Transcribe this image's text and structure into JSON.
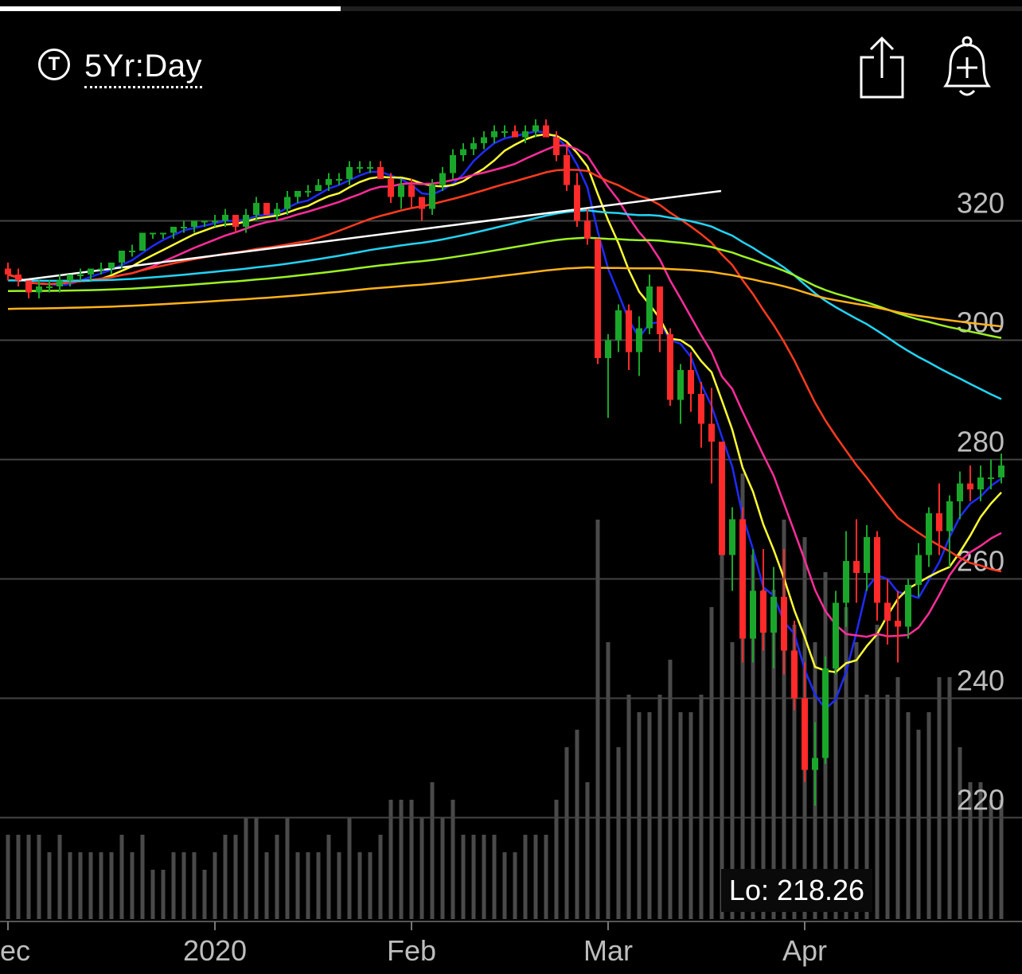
{
  "header": {
    "timeframe_icon_label": "T",
    "timeframe_label": "5Yr:Day",
    "share_icon": "share-icon",
    "alert_icon": "bell-plus-icon"
  },
  "progress": 0.333,
  "lo_label": "Lo: 218.26",
  "colors": {
    "up": "#1aa62a",
    "down": "#ff2a2a",
    "volume": "#4a4a4a",
    "trendline": "#ffffff"
  },
  "chart_data": {
    "type": "candlestick",
    "y_ticks": [
      220,
      240,
      260,
      280,
      300,
      320
    ],
    "ylim": [
      203,
      337
    ],
    "x_ticks": [
      "ec",
      "2020",
      "Feb",
      "Mar",
      "Apr"
    ],
    "x_tick_index": [
      0,
      20,
      39,
      58,
      77
    ],
    "grid": true,
    "candles": [
      [
        312,
        313,
        310,
        311
      ],
      [
        311,
        312,
        309,
        310
      ],
      [
        310,
        310,
        307,
        308
      ],
      [
        308,
        310,
        307,
        309
      ],
      [
        309,
        310,
        308,
        309
      ],
      [
        309,
        311,
        308,
        310
      ],
      [
        310,
        311,
        309,
        311
      ],
      [
        311,
        312,
        310,
        311
      ],
      [
        311,
        312,
        310,
        312
      ],
      [
        312,
        313,
        311,
        312
      ],
      [
        312,
        313,
        311,
        313
      ],
      [
        313,
        315,
        312,
        315
      ],
      [
        315,
        316,
        314,
        315
      ],
      [
        315,
        318,
        315,
        318
      ],
      [
        318,
        318,
        317,
        318
      ],
      [
        318,
        318,
        317,
        318
      ],
      [
        318,
        319,
        317,
        319
      ],
      [
        319,
        320,
        318,
        319
      ],
      [
        319,
        320,
        318,
        320
      ],
      [
        320,
        320,
        319,
        320
      ],
      [
        320,
        321,
        319,
        320
      ],
      [
        320,
        322,
        319,
        321
      ],
      [
        321,
        321,
        318,
        319
      ],
      [
        319,
        322,
        318,
        321
      ],
      [
        321,
        324,
        320,
        323
      ],
      [
        323,
        323,
        321,
        321
      ],
      [
        321,
        323,
        320,
        322
      ],
      [
        322,
        325,
        321,
        324
      ],
      [
        324,
        325,
        323,
        325
      ],
      [
        325,
        326,
        324,
        325
      ],
      [
        325,
        327,
        325,
        326
      ],
      [
        326,
        328,
        325,
        327
      ],
      [
        327,
        328,
        326,
        327
      ],
      [
        327,
        330,
        326,
        329
      ],
      [
        329,
        330,
        328,
        329
      ],
      [
        329,
        330,
        328,
        329
      ],
      [
        329,
        330,
        327,
        327
      ],
      [
        327,
        328,
        323,
        324
      ],
      [
        324,
        327,
        322,
        326
      ],
      [
        326,
        327,
        322,
        324
      ],
      [
        324,
        324,
        320,
        322
      ],
      [
        322,
        327,
        321,
        326
      ],
      [
        326,
        329,
        325,
        328
      ],
      [
        328,
        332,
        327,
        331
      ],
      [
        331,
        333,
        330,
        332
      ],
      [
        332,
        334,
        331,
        333
      ],
      [
        333,
        335,
        332,
        334
      ],
      [
        334,
        336,
        333,
        335
      ],
      [
        335,
        336,
        334,
        335
      ],
      [
        335,
        336,
        334,
        334
      ],
      [
        334,
        336,
        333,
        335
      ],
      [
        335,
        337,
        334,
        336
      ],
      [
        336,
        337,
        334,
        334
      ],
      [
        334,
        335,
        330,
        331
      ],
      [
        331,
        333,
        325,
        326
      ],
      [
        326,
        328,
        319,
        320
      ],
      [
        320,
        322,
        316,
        317
      ],
      [
        317,
        317,
        296,
        297
      ],
      [
        297,
        301,
        287,
        300
      ],
      [
        300,
        306,
        298,
        305
      ],
      [
        305,
        306,
        295,
        298
      ],
      [
        298,
        304,
        294,
        302
      ],
      [
        302,
        311,
        301,
        309
      ],
      [
        309,
        309,
        298,
        301
      ],
      [
        301,
        302,
        289,
        290
      ],
      [
        290,
        296,
        286,
        295
      ],
      [
        295,
        298,
        288,
        291
      ],
      [
        291,
        293,
        282,
        286
      ],
      [
        286,
        292,
        276,
        283
      ],
      [
        283,
        283,
        264,
        264
      ],
      [
        264,
        272,
        258,
        270
      ],
      [
        270,
        272,
        246,
        250
      ],
      [
        250,
        265,
        246,
        258
      ],
      [
        258,
        265,
        248,
        251
      ],
      [
        251,
        262,
        245,
        257
      ],
      [
        257,
        265,
        244,
        248
      ],
      [
        248,
        253,
        238,
        240
      ],
      [
        240,
        246,
        226,
        228
      ],
      [
        228,
        236,
        222,
        230
      ],
      [
        230,
        247,
        229,
        245
      ],
      [
        245,
        258,
        244,
        256
      ],
      [
        256,
        268,
        252,
        263
      ],
      [
        263,
        270,
        256,
        261
      ],
      [
        261,
        269,
        258,
        267
      ],
      [
        267,
        268,
        253,
        256
      ],
      [
        256,
        260,
        249,
        253
      ],
      [
        253,
        258,
        246,
        252
      ],
      [
        252,
        260,
        250,
        259
      ],
      [
        259,
        266,
        257,
        264
      ],
      [
        264,
        272,
        262,
        271
      ],
      [
        271,
        276,
        264,
        268
      ],
      [
        268,
        274,
        262,
        273
      ],
      [
        273,
        278,
        270,
        276
      ],
      [
        276,
        279,
        273,
        275
      ],
      [
        275,
        279,
        273,
        277
      ],
      [
        277,
        280,
        275,
        277
      ],
      [
        277,
        281,
        276,
        279
      ]
    ],
    "volume": [
      [
        0,
        0,
        [
          0,
          0
        ]
      ]
    ],
    "moving_averages": [
      {
        "color": "#1f2bff",
        "period": 5
      },
      {
        "color": "#ffff33",
        "period": 8
      },
      {
        "color": "#ff2d9a",
        "period": 13
      },
      {
        "color": "#ff3b1f",
        "period": 30
      },
      {
        "color": "#22d4f5",
        "period": 60
      },
      {
        "color": "#9df223",
        "period": 90
      },
      {
        "color": "#ffb21a",
        "period": 140
      }
    ],
    "trendline": [
      [
        306,
        310
      ],
      [
        842,
        325
      ]
    ]
  }
}
